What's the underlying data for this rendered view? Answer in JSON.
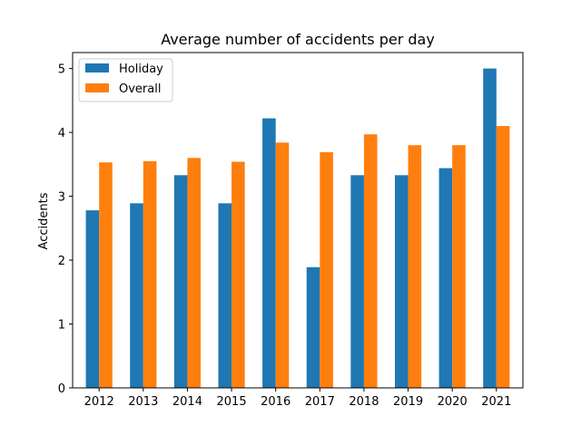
{
  "chart_data": {
    "type": "bar",
    "title": "Average number of accidents per day",
    "xlabel": "",
    "ylabel": "Accidents",
    "categories": [
      "2012",
      "2013",
      "2014",
      "2015",
      "2016",
      "2017",
      "2018",
      "2019",
      "2020",
      "2021"
    ],
    "series": [
      {
        "name": "Holiday",
        "color": "#1f77b4",
        "values": [
          2.78,
          2.89,
          3.33,
          2.89,
          4.22,
          1.89,
          3.33,
          3.33,
          3.44,
          5.0
        ]
      },
      {
        "name": "Overall",
        "color": "#ff7f0e",
        "values": [
          3.53,
          3.55,
          3.6,
          3.54,
          3.84,
          3.69,
          3.97,
          3.8,
          3.8,
          4.1
        ]
      }
    ],
    "ylim": [
      0,
      5.25
    ],
    "yticks": [
      "0",
      "1",
      "2",
      "3",
      "4",
      "5"
    ],
    "legend": "top-left",
    "grid": false
  }
}
